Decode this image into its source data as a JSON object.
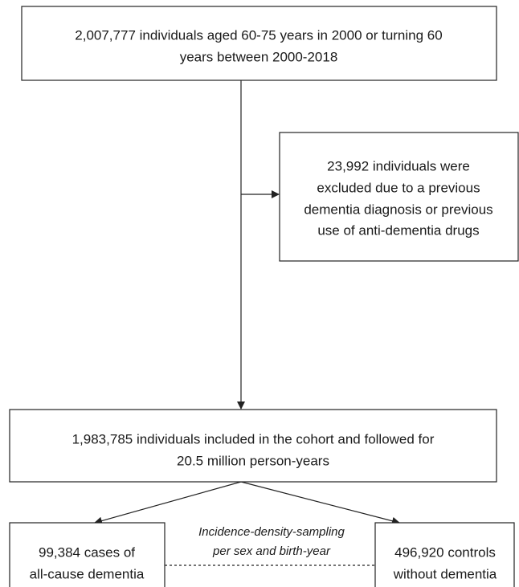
{
  "nodes": [
    {
      "lines": [
        "2,007,777 individuals aged 60-75 years in 2000 or turning 60",
        "years between 2000-2018"
      ]
    },
    {
      "lines": [
        "23,992 individuals were",
        "excluded due to a previous",
        "dementia diagnosis or previous",
        "use of anti-dementia drugs"
      ]
    },
    {
      "lines": [
        "1,983,785 individuals included in the cohort and followed for",
        "20.5 million person-years"
      ]
    },
    {
      "lines": [
        "99,384 cases of",
        "all-cause dementia"
      ]
    },
    {
      "lines": [
        "496,920 controls",
        "without dementia"
      ]
    }
  ],
  "edge_label": {
    "lines": [
      "Incidence-density-sampling",
      "per sex and birth-year"
    ]
  }
}
